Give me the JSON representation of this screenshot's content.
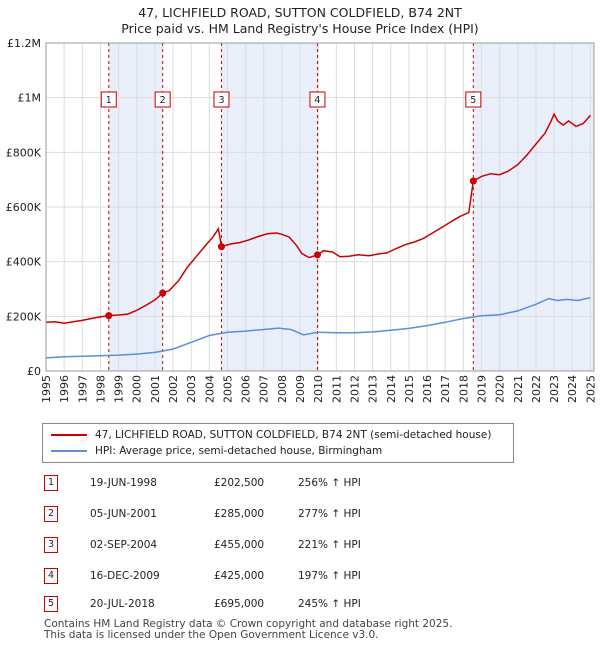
{
  "title_line1": "47, LICHFIELD ROAD, SUTTON COLDFIELD, B74 2NT",
  "title_line2": "Price paid vs. HM Land Registry's House Price Index (HPI)",
  "chart_data": {
    "type": "line",
    "x_range": [
      1995,
      2025.2
    ],
    "ylim": [
      0,
      1200000
    ],
    "y_ticks": [
      {
        "value": 0,
        "label": "£0"
      },
      {
        "value": 200000,
        "label": "£200K"
      },
      {
        "value": 400000,
        "label": "£400K"
      },
      {
        "value": 600000,
        "label": "£600K"
      },
      {
        "value": 800000,
        "label": "£800K"
      },
      {
        "value": 1000000,
        "label": "£1M"
      },
      {
        "value": 1200000,
        "label": "£1.2M"
      }
    ],
    "x_ticks": [
      "1995",
      "1996",
      "1997",
      "1998",
      "1999",
      "2000",
      "2001",
      "2002",
      "2003",
      "2004",
      "2005",
      "2006",
      "2007",
      "2008",
      "2009",
      "2010",
      "2011",
      "2012",
      "2013",
      "2014",
      "2015",
      "2016",
      "2017",
      "2018",
      "2019",
      "2020",
      "2021",
      "2022",
      "2023",
      "2024",
      "2025"
    ],
    "series": [
      {
        "name": "47, LICHFIELD ROAD, SUTTON COLDFIELD, B74 2NT (semi-detached house)",
        "color": "#cc0000",
        "points": [
          [
            1995.0,
            178000
          ],
          [
            1995.5,
            180000
          ],
          [
            1996.0,
            175000
          ],
          [
            1996.5,
            180000
          ],
          [
            1997.0,
            185000
          ],
          [
            1997.5,
            192000
          ],
          [
            1998.0,
            198000
          ],
          [
            1998.46,
            202500
          ],
          [
            1999.0,
            205000
          ],
          [
            1999.5,
            208000
          ],
          [
            2000.0,
            222000
          ],
          [
            2000.5,
            240000
          ],
          [
            2001.0,
            260000
          ],
          [
            2001.43,
            285000
          ],
          [
            2001.8,
            295000
          ],
          [
            2002.3,
            330000
          ],
          [
            2002.8,
            380000
          ],
          [
            2003.3,
            420000
          ],
          [
            2003.8,
            460000
          ],
          [
            2004.2,
            490000
          ],
          [
            2004.5,
            520000
          ],
          [
            2004.67,
            455000
          ],
          [
            2005.2,
            465000
          ],
          [
            2005.7,
            470000
          ],
          [
            2006.2,
            480000
          ],
          [
            2006.7,
            492000
          ],
          [
            2007.2,
            502000
          ],
          [
            2007.7,
            505000
          ],
          [
            2008.0,
            500000
          ],
          [
            2008.4,
            490000
          ],
          [
            2008.8,
            460000
          ],
          [
            2009.1,
            430000
          ],
          [
            2009.5,
            415000
          ],
          [
            2009.96,
            425000
          ],
          [
            2010.3,
            440000
          ],
          [
            2010.8,
            435000
          ],
          [
            2011.2,
            418000
          ],
          [
            2011.7,
            420000
          ],
          [
            2012.2,
            425000
          ],
          [
            2012.8,
            422000
          ],
          [
            2013.3,
            428000
          ],
          [
            2013.8,
            432000
          ],
          [
            2014.3,
            448000
          ],
          [
            2014.8,
            462000
          ],
          [
            2015.3,
            472000
          ],
          [
            2015.8,
            485000
          ],
          [
            2016.3,
            505000
          ],
          [
            2016.8,
            525000
          ],
          [
            2017.3,
            545000
          ],
          [
            2017.8,
            565000
          ],
          [
            2018.3,
            580000
          ],
          [
            2018.55,
            695000
          ],
          [
            2019.0,
            712000
          ],
          [
            2019.5,
            722000
          ],
          [
            2020.0,
            718000
          ],
          [
            2020.5,
            732000
          ],
          [
            2021.0,
            755000
          ],
          [
            2021.5,
            790000
          ],
          [
            2022.0,
            830000
          ],
          [
            2022.5,
            870000
          ],
          [
            2022.8,
            910000
          ],
          [
            2023.0,
            940000
          ],
          [
            2023.2,
            915000
          ],
          [
            2023.5,
            900000
          ],
          [
            2023.8,
            915000
          ],
          [
            2024.2,
            895000
          ],
          [
            2024.6,
            905000
          ],
          [
            2025.0,
            935000
          ]
        ]
      },
      {
        "name": "HPI: Average price, semi-detached house, Birmingham",
        "color": "#5b8fd6",
        "points": [
          [
            1995.0,
            48000
          ],
          [
            1996.0,
            52000
          ],
          [
            1997.0,
            54000
          ],
          [
            1998.0,
            56000
          ],
          [
            1999.0,
            58000
          ],
          [
            2000.0,
            62000
          ],
          [
            2001.0,
            68000
          ],
          [
            2002.0,
            80000
          ],
          [
            2003.0,
            105000
          ],
          [
            2004.0,
            130000
          ],
          [
            2005.0,
            142000
          ],
          [
            2006.0,
            146000
          ],
          [
            2007.0,
            152000
          ],
          [
            2007.8,
            157000
          ],
          [
            2008.5,
            152000
          ],
          [
            2009.2,
            132000
          ],
          [
            2010.0,
            142000
          ],
          [
            2011.0,
            140000
          ],
          [
            2012.0,
            140000
          ],
          [
            2013.0,
            143000
          ],
          [
            2014.0,
            149000
          ],
          [
            2015.0,
            156000
          ],
          [
            2016.0,
            166000
          ],
          [
            2017.0,
            178000
          ],
          [
            2018.0,
            192000
          ],
          [
            2019.0,
            202000
          ],
          [
            2020.0,
            206000
          ],
          [
            2021.0,
            220000
          ],
          [
            2022.0,
            244000
          ],
          [
            2022.7,
            265000
          ],
          [
            2023.2,
            258000
          ],
          [
            2023.7,
            262000
          ],
          [
            2024.3,
            258000
          ],
          [
            2025.0,
            268000
          ]
        ]
      }
    ],
    "shaded_periods": [
      [
        1998.46,
        2001.43
      ],
      [
        2004.67,
        2009.96
      ],
      [
        2018.55,
        2025.2
      ]
    ],
    "sales": [
      {
        "label": "1",
        "year": 1998.46,
        "price": 202500
      },
      {
        "label": "2",
        "year": 2001.43,
        "price": 285000
      },
      {
        "label": "3",
        "year": 2004.67,
        "price": 455000
      },
      {
        "label": "4",
        "year": 2009.96,
        "price": 425000
      },
      {
        "label": "5",
        "year": 2018.55,
        "price": 695000
      }
    ]
  },
  "legend": {
    "property": "47, LICHFIELD ROAD, SUTTON COLDFIELD, B74 2NT (semi-detached house)",
    "hpi": "HPI: Average price, semi-detached house, Birmingham"
  },
  "sales_table": [
    {
      "num": "1",
      "date": "19-JUN-1998",
      "price": "£202,500",
      "hpi": "256% ↑ HPI"
    },
    {
      "num": "2",
      "date": "05-JUN-2001",
      "price": "£285,000",
      "hpi": "277% ↑ HPI"
    },
    {
      "num": "3",
      "date": "02-SEP-2004",
      "price": "£455,000",
      "hpi": "221% ↑ HPI"
    },
    {
      "num": "4",
      "date": "16-DEC-2009",
      "price": "£425,000",
      "hpi": "197% ↑ HPI"
    },
    {
      "num": "5",
      "date": "20-JUL-2018",
      "price": "£695,000",
      "hpi": "245% ↑ HPI"
    }
  ],
  "footer": {
    "line1": "Contains HM Land Registry data © Crown copyright and database right 2025.",
    "line2": "This data is licensed under the Open Government Licence v3.0."
  }
}
